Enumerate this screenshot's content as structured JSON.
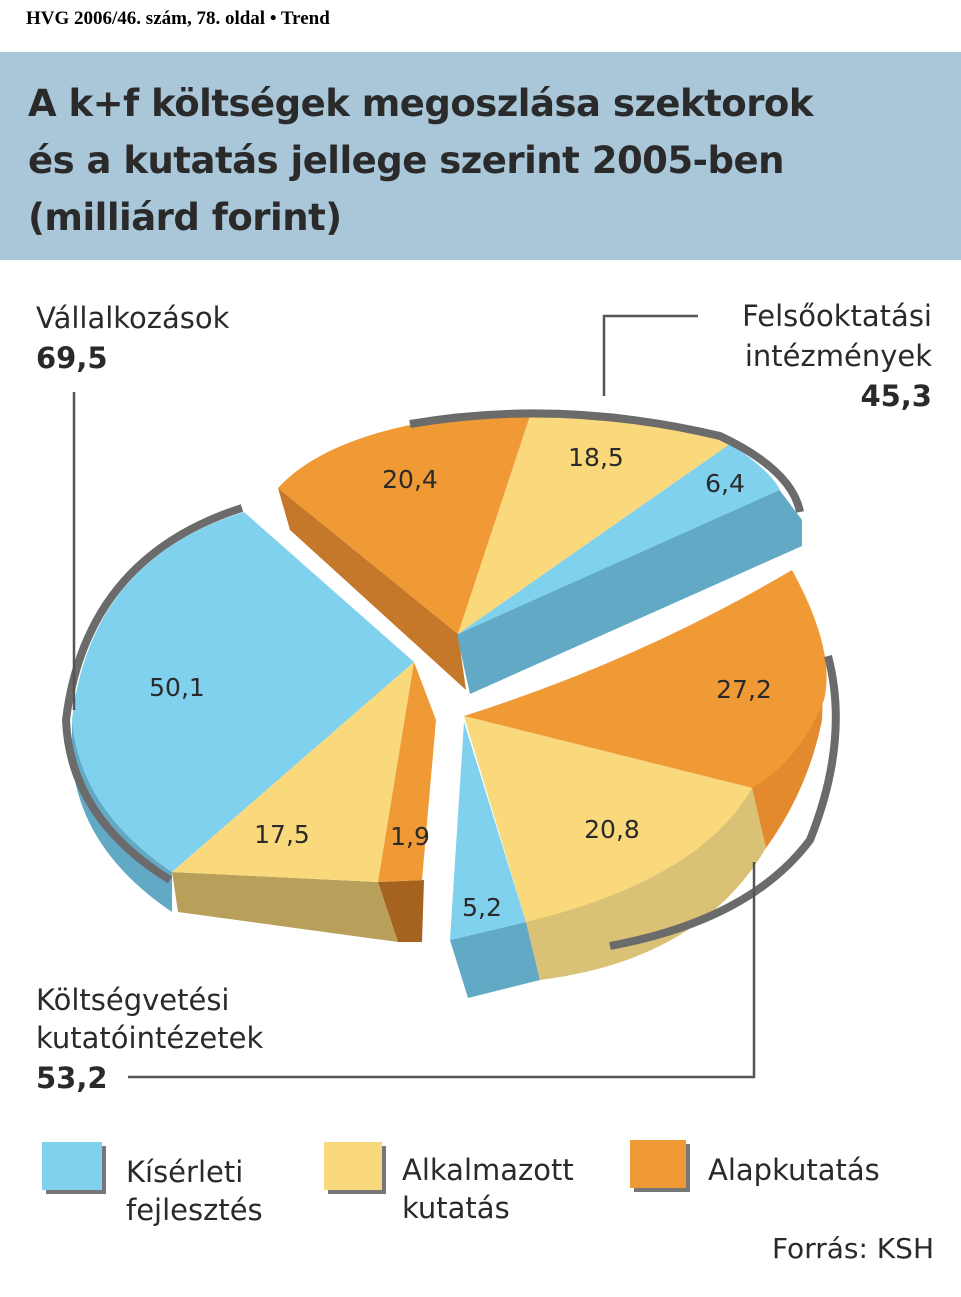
{
  "header": {
    "caption": "HVG 2006/46. szám, 78. oldal • Trend"
  },
  "colors": {
    "band": "#a9c7d8",
    "kiserleti": "#7fd1ee",
    "alkalmazott": "#f9d97c",
    "alap": "#f09a36",
    "rim": "#6b6b6b"
  },
  "chart_data": {
    "type": "pie",
    "title": [
      "A k+f költségek megoszlása szektorok",
      "és a kutatás jellege szerint 2005-ben",
      "(milliárd forint)"
    ],
    "unit": "milliárd forint",
    "groups": [
      {
        "name": [
          "Vállalkozások"
        ],
        "total": "69,5",
        "values": [
          {
            "series": "Kísérleti fejlesztés",
            "value": 50.1,
            "label": "50,1"
          },
          {
            "series": "Alkalmazott kutatás",
            "value": 17.5,
            "label": "17,5"
          },
          {
            "series": "Alapkutatás",
            "value": 1.9,
            "label": "1,9"
          }
        ]
      },
      {
        "name": [
          "Felsőoktatási",
          "intézmények"
        ],
        "total": "45,3",
        "values": [
          {
            "series": "Alapkutatás",
            "value": 20.4,
            "label": "20,4"
          },
          {
            "series": "Alkalmazott kutatás",
            "value": 18.5,
            "label": "18,5"
          },
          {
            "series": "Kísérleti fejlesztés",
            "value": 6.4,
            "label": "6,4"
          }
        ]
      },
      {
        "name": [
          "Költségvetési",
          "kutatóintézetek"
        ],
        "total": "53,2",
        "values": [
          {
            "series": "Alapkutatás",
            "value": 27.2,
            "label": "27,2"
          },
          {
            "series": "Alkalmazott kutatás",
            "value": 20.8,
            "label": "20,8"
          },
          {
            "series": "Kísérleti fejlesztés",
            "value": 5.2,
            "label": "5,2"
          }
        ]
      }
    ],
    "legend": [
      {
        "lines": [
          "Kísérleti",
          "fejlesztés"
        ],
        "color": "#7fd1ee"
      },
      {
        "lines": [
          "Alkalmazott",
          "kutatás"
        ],
        "color": "#f9d97c"
      },
      {
        "lines": [
          "Alapkutatás"
        ],
        "color": "#f09a36"
      }
    ],
    "source": "Forrás: KSH"
  }
}
